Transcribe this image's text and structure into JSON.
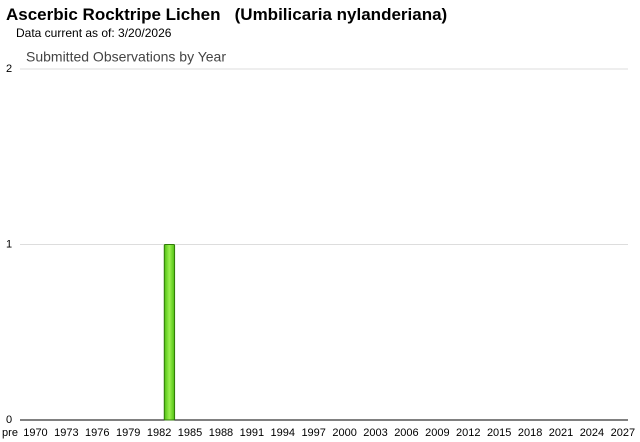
{
  "title": "Ascerbic Rocktripe Lichen   (Umbilicaria nylanderiana)",
  "subtitle": "Data current as of: 3/20/2026",
  "chart_data": {
    "type": "bar",
    "title": "Submitted Observations by Year",
    "x": [
      1983
    ],
    "values": [
      1
    ],
    "color": "#66dd22",
    "xlim": [
      1968.5,
      2027.5
    ],
    "xticks": [
      {
        "value": 1968.5,
        "label": "pre"
      },
      1970,
      1973,
      1976,
      1979,
      1982,
      1985,
      1988,
      1991,
      1994,
      1997,
      2000,
      2003,
      2006,
      2009,
      2012,
      2015,
      2018,
      2021,
      2024,
      2027
    ],
    "ylim": [
      0,
      2
    ],
    "yticks": [
      0,
      1,
      2
    ],
    "grid": true
  }
}
